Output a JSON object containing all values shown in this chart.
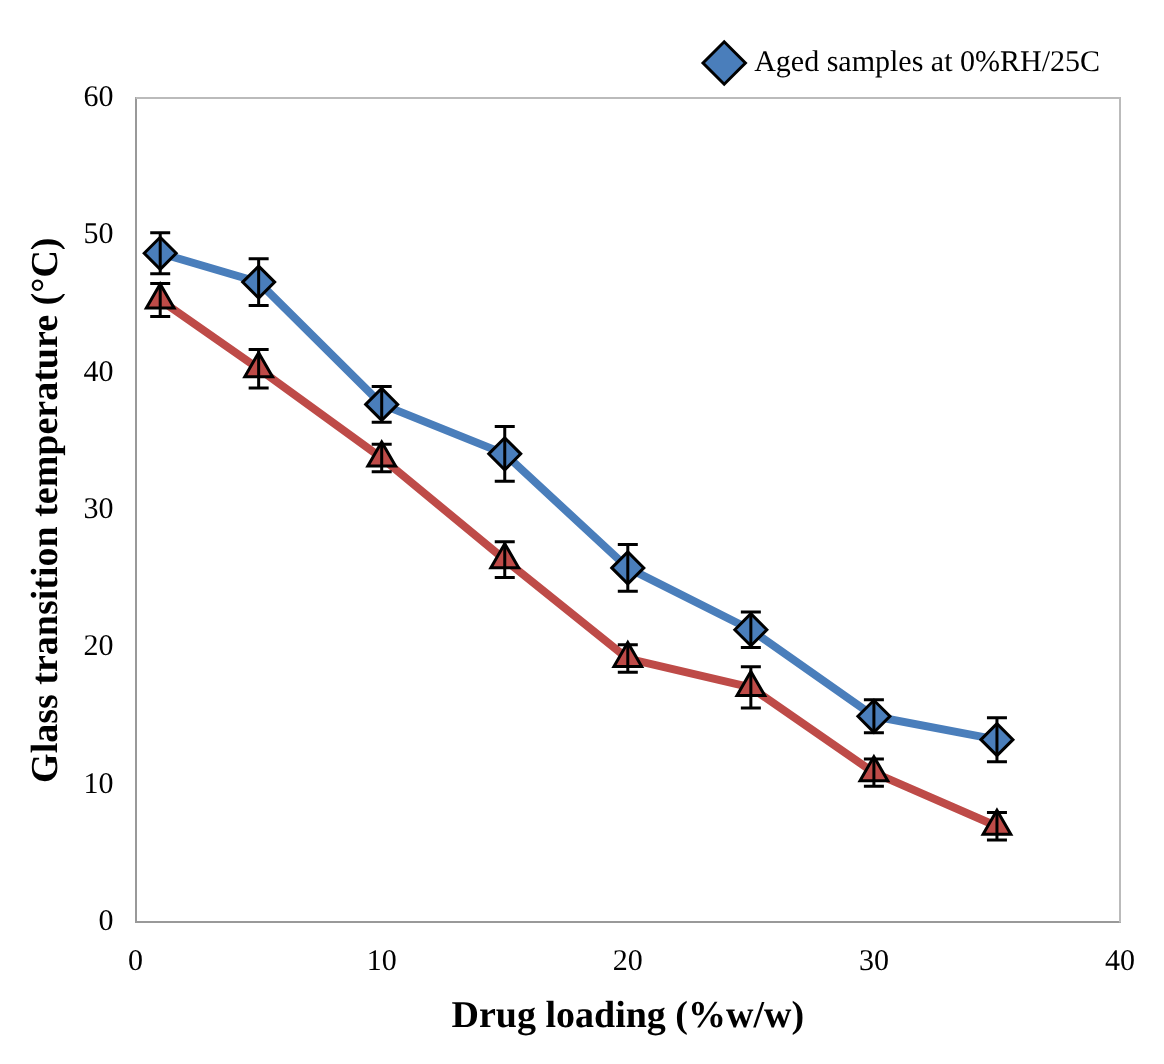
{
  "chart_data": {
    "type": "line",
    "xlabel": "Drug loading (%w/w)",
    "ylabel": "Glass transition temperature (°C)",
    "x": [
      1,
      5,
      10,
      15,
      20,
      25,
      30,
      35
    ],
    "series": [
      {
        "name": "Aged samples at 0%RH/25C",
        "color": "#4a7ebb",
        "marker": "diamond",
        "values": [
          48.7,
          46.6,
          37.7,
          34.1,
          25.8,
          21.3,
          15.0,
          13.3
        ],
        "errors": [
          1.5,
          1.7,
          1.3,
          2.0,
          1.7,
          1.3,
          1.2,
          1.6
        ]
      },
      {
        "color": "#be4b48",
        "marker": "triangle",
        "values": [
          45.3,
          40.3,
          33.8,
          26.4,
          19.2,
          17.1,
          10.9,
          7.0
        ],
        "errors": [
          1.2,
          1.4,
          1.0,
          1.3,
          1.0,
          1.5,
          1.0,
          1.0
        ]
      }
    ],
    "xlim": [
      0,
      40
    ],
    "xticks": [
      0,
      10,
      20,
      30,
      40
    ],
    "ylim": [
      0,
      60
    ],
    "yticks": [
      0,
      10,
      20,
      30,
      40,
      50,
      60
    ],
    "grid": false,
    "legend": "top right",
    "line_style": "solid"
  }
}
